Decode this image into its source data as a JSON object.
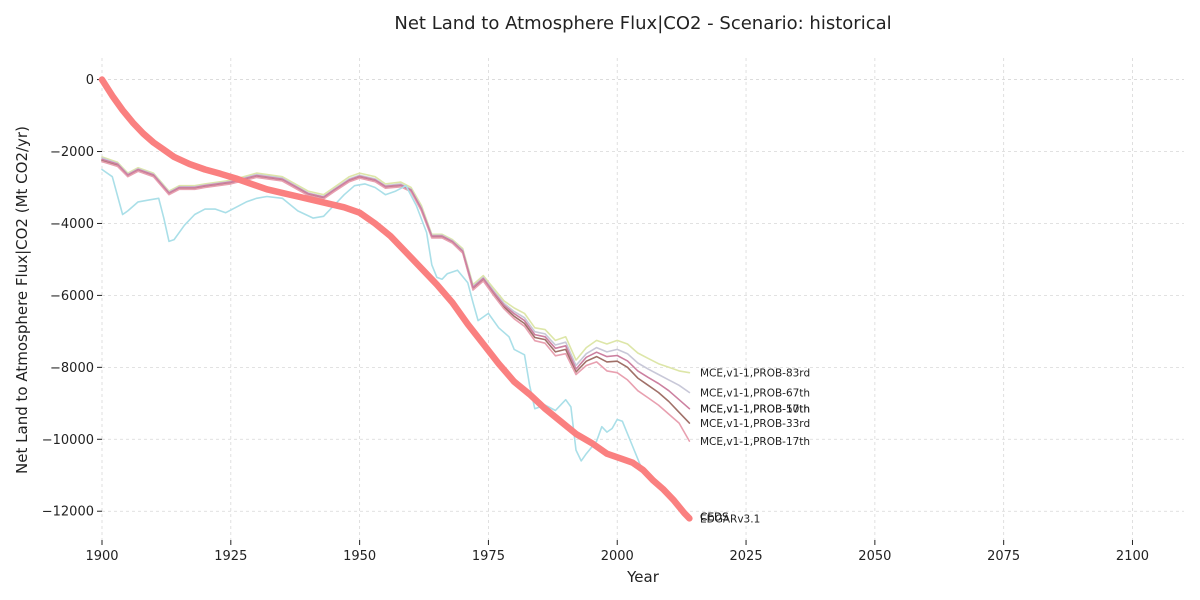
{
  "chart_data": {
    "type": "line",
    "title": "Net Land to Atmosphere Flux|CO2 - Scenario: historical",
    "xlabel": "Year",
    "ylabel": "Net Land to Atmosphere Flux|CO2 (Mt CO2/yr)",
    "xlim": [
      1900,
      2110
    ],
    "ylim": [
      -12800,
      600
    ],
    "xticks": [
      1900,
      1925,
      1950,
      1975,
      2000,
      2025,
      2050,
      2075,
      2100
    ],
    "yticks": [
      0,
      -2000,
      -4000,
      -6000,
      -8000,
      -10000,
      -12000
    ],
    "grid": true,
    "series": [
      {
        "name": "MCE,v1-1,PROB-83rd",
        "color": "#dde6a8",
        "width": 1.6,
        "x": [
          1900,
          1903,
          1905,
          1907,
          1910,
          1913,
          1915,
          1918,
          1920,
          1925,
          1930,
          1935,
          1940,
          1943,
          1945,
          1948,
          1950,
          1953,
          1955,
          1958,
          1960,
          1962,
          1964,
          1966,
          1968,
          1970,
          1972,
          1974,
          1976,
          1978,
          1980,
          1982,
          1984,
          1986,
          1988,
          1990,
          1992,
          1994,
          1996,
          1998,
          2000,
          2002,
          2004,
          2006,
          2008,
          2010,
          2012,
          2014
        ],
        "y": [
          -2150,
          -2300,
          -2600,
          -2450,
          -2600,
          -3100,
          -2950,
          -2950,
          -2900,
          -2800,
          -2600,
          -2700,
          -3100,
          -3200,
          -3000,
          -2700,
          -2600,
          -2700,
          -2900,
          -2850,
          -3000,
          -3500,
          -4300,
          -4300,
          -4450,
          -4700,
          -5700,
          -5450,
          -5800,
          -6150,
          -6350,
          -6500,
          -6900,
          -6950,
          -7250,
          -7150,
          -7800,
          -7450,
          -7250,
          -7350,
          -7250,
          -7350,
          -7600,
          -7750,
          -7900,
          -8000,
          -8100,
          -8150
        ]
      },
      {
        "name": "MCE,v1-1,PROB-67th",
        "color": "#c8c8d8",
        "width": 1.6,
        "x": [
          1900,
          1903,
          1905,
          1907,
          1910,
          1913,
          1915,
          1918,
          1920,
          1925,
          1930,
          1935,
          1940,
          1943,
          1945,
          1948,
          1950,
          1953,
          1955,
          1958,
          1960,
          1962,
          1964,
          1966,
          1968,
          1970,
          1972,
          1974,
          1976,
          1978,
          1980,
          1982,
          1984,
          1986,
          1988,
          1990,
          1992,
          1994,
          1996,
          1998,
          2000,
          2002,
          2004,
          2006,
          2008,
          2010,
          2012,
          2014
        ],
        "y": [
          -2180,
          -2330,
          -2630,
          -2480,
          -2630,
          -3130,
          -2980,
          -2980,
          -2930,
          -2830,
          -2640,
          -2740,
          -3150,
          -3250,
          -3050,
          -2760,
          -2660,
          -2760,
          -2950,
          -2900,
          -3050,
          -3560,
          -4330,
          -4330,
          -4480,
          -4740,
          -5750,
          -5500,
          -5870,
          -6220,
          -6450,
          -6620,
          -7010,
          -7070,
          -7380,
          -7300,
          -7950,
          -7620,
          -7450,
          -7570,
          -7500,
          -7620,
          -7880,
          -8050,
          -8200,
          -8350,
          -8500,
          -8700
        ]
      },
      {
        "name": "MCE,v1-1,PROB-50th",
        "color": "#a07068",
        "width": 1.6,
        "x": [
          1900,
          1903,
          1905,
          1907,
          1910,
          1913,
          1915,
          1918,
          1920,
          1925,
          1930,
          1935,
          1940,
          1943,
          1945,
          1948,
          1950,
          1953,
          1955,
          1958,
          1960,
          1962,
          1964,
          1966,
          1968,
          1970,
          1972,
          1974,
          1976,
          1978,
          1980,
          1982,
          1984,
          1986,
          1988,
          1990,
          1992,
          1994,
          1996,
          1998,
          2000,
          2002,
          2004,
          2006,
          2008,
          2010,
          2012,
          2014
        ],
        "y": [
          -2250,
          -2380,
          -2680,
          -2530,
          -2680,
          -3180,
          -3030,
          -3030,
          -2980,
          -2880,
          -2700,
          -2800,
          -3200,
          -3300,
          -3100,
          -2820,
          -2720,
          -2820,
          -3000,
          -2960,
          -3100,
          -3620,
          -4380,
          -4380,
          -4530,
          -4800,
          -5820,
          -5570,
          -5960,
          -6320,
          -6580,
          -6780,
          -7170,
          -7230,
          -7570,
          -7500,
          -8130,
          -7830,
          -7700,
          -7850,
          -7830,
          -8000,
          -8300,
          -8500,
          -8700,
          -8950,
          -9250,
          -9550
        ]
      },
      {
        "name": "MCE,v1-1,PROB-33rd",
        "color": "#e8a0b0",
        "width": 1.6,
        "x": [
          1900,
          1903,
          1905,
          1907,
          1910,
          1913,
          1915,
          1918,
          1920,
          1925,
          1930,
          1935,
          1940,
          1943,
          1945,
          1948,
          1950,
          1953,
          1955,
          1958,
          1960,
          1962,
          1964,
          1966,
          1968,
          1970,
          1972,
          1974,
          1976,
          1978,
          1980,
          1982,
          1984,
          1986,
          1988,
          1990,
          1992,
          1994,
          1996,
          1998,
          2000,
          2002,
          2004,
          2006,
          2008,
          2010,
          2012,
          2014
        ],
        "y": [
          -2280,
          -2410,
          -2700,
          -2550,
          -2700,
          -3200,
          -3050,
          -3050,
          -3000,
          -2900,
          -2720,
          -2820,
          -3220,
          -3320,
          -3120,
          -2840,
          -2740,
          -2840,
          -3020,
          -2980,
          -3120,
          -3650,
          -4400,
          -4400,
          -4550,
          -4820,
          -5850,
          -5600,
          -6000,
          -6370,
          -6650,
          -6860,
          -7260,
          -7330,
          -7680,
          -7620,
          -8200,
          -7950,
          -7850,
          -8100,
          -8150,
          -8350,
          -8650,
          -8850,
          -9050,
          -9300,
          -9550,
          -10050
        ]
      },
      {
        "name": "MCE,v1-1,PROB-17th",
        "color": "#cc80a0",
        "width": 1.6,
        "x": [
          1900,
          1903,
          1905,
          1907,
          1910,
          1913,
          1915,
          1918,
          1920,
          1925,
          1930,
          1935,
          1940,
          1943,
          1945,
          1948,
          1950,
          1953,
          1955,
          1958,
          1960,
          1962,
          1964,
          1966,
          1968,
          1970,
          1972,
          1974,
          1976,
          1978,
          1980,
          1982,
          1984,
          1986,
          1988,
          1990,
          1992,
          1994,
          1996,
          1998,
          2000,
          2002,
          2004,
          2006,
          2008,
          2010,
          2012,
          2014
        ],
        "y": [
          -2220,
          -2350,
          -2650,
          -2500,
          -2650,
          -3150,
          -3000,
          -3000,
          -2950,
          -2850,
          -2670,
          -2770,
          -3170,
          -3270,
          -3070,
          -2790,
          -2690,
          -2790,
          -2970,
          -2930,
          -3070,
          -3590,
          -4350,
          -4350,
          -4500,
          -4770,
          -5780,
          -5530,
          -5910,
          -6270,
          -6510,
          -6700,
          -7090,
          -7150,
          -7470,
          -7400,
          -8050,
          -7720,
          -7580,
          -7700,
          -7670,
          -7820,
          -8100,
          -8280,
          -8450,
          -8650,
          -8900,
          -9150
        ]
      },
      {
        "name": "CEDS",
        "color": "#aadfe8",
        "width": 1.6,
        "x": [
          1900,
          1902,
          1904,
          1905,
          1907,
          1909,
          1911,
          1912,
          1913,
          1914,
          1916,
          1918,
          1920,
          1922,
          1924,
          1926,
          1928,
          1930,
          1932,
          1935,
          1938,
          1941,
          1943,
          1945,
          1947,
          1949,
          1951,
          1953,
          1955,
          1957,
          1959,
          1961,
          1963,
          1964,
          1965,
          1966,
          1967,
          1969,
          1971,
          1972,
          1973,
          1975,
          1977,
          1979,
          1980,
          1982,
          1983,
          1984,
          1986,
          1988,
          1989,
          1990,
          1991,
          1992,
          1993,
          1994,
          1996,
          1997,
          1998,
          1999,
          2000,
          2001,
          2003,
          2005,
          2007,
          2009,
          2011,
          2013,
          2014
        ],
        "y": [
          -2500,
          -2700,
          -3750,
          -3650,
          -3400,
          -3350,
          -3300,
          -3850,
          -4500,
          -4450,
          -4050,
          -3750,
          -3600,
          -3600,
          -3700,
          -3550,
          -3400,
          -3300,
          -3250,
          -3300,
          -3650,
          -3850,
          -3800,
          -3500,
          -3200,
          -2950,
          -2900,
          -3000,
          -3200,
          -3100,
          -2950,
          -3500,
          -4250,
          -5150,
          -5500,
          -5550,
          -5400,
          -5300,
          -5650,
          -6200,
          -6700,
          -6500,
          -6900,
          -7150,
          -7500,
          -7650,
          -8500,
          -9150,
          -9050,
          -9200,
          -9050,
          -8900,
          -9100,
          -10300,
          -10600,
          -10400,
          -10050,
          -9650,
          -9800,
          -9700,
          -9450,
          -9500,
          -10200,
          -10900,
          -11200,
          -11400,
          -11750,
          -12050,
          -12150
        ]
      },
      {
        "name": "EDGAR",
        "color": "#fa8080",
        "width": 6.5,
        "x": [
          1900,
          1902,
          1904,
          1906,
          1908,
          1910,
          1912,
          1914,
          1917,
          1920,
          1923,
          1926,
          1929,
          1932,
          1935,
          1938,
          1941,
          1944,
          1947,
          1950,
          1953,
          1956,
          1959,
          1962,
          1965,
          1968,
          1971,
          1974,
          1977,
          1980,
          1983,
          1986,
          1989,
          1992,
          1995,
          1998,
          2001,
          2003,
          2005,
          2007,
          2009,
          2011,
          2013,
          2014
        ],
        "y": [
          0,
          -450,
          -850,
          -1200,
          -1500,
          -1750,
          -1950,
          -2150,
          -2350,
          -2500,
          -2620,
          -2750,
          -2900,
          -3050,
          -3150,
          -3250,
          -3350,
          -3450,
          -3550,
          -3700,
          -4000,
          -4350,
          -4800,
          -5250,
          -5700,
          -6200,
          -6800,
          -7350,
          -7900,
          -8400,
          -8750,
          -9150,
          -9500,
          -9850,
          -10100,
          -10400,
          -10550,
          -10650,
          -10850,
          -11150,
          -11400,
          -11700,
          -12050,
          -12200
        ]
      }
    ],
    "labels": [
      {
        "text": "MCE,v1-1,PROB-83rd",
        "y": -8150
      },
      {
        "text": "MCE,v1-1,PROB-67th",
        "y": -8700
      },
      {
        "text": "MCE,v1-1,PROB-50th",
        "y": -9150
      },
      {
        "text": "MCE,v1-1,PROB-17th",
        "y": -9150
      },
      {
        "text": "MCE,v1-1,PROB-33rd",
        "y": -9550
      },
      {
        "text": "MCE,v1-1,PROB-17th",
        "y": -10050
      },
      {
        "text": "EDGARv3.1",
        "y": -12200
      },
      {
        "text": "CEDS",
        "y": -12150
      },
      {
        "text": "CEDS",
        "y": -12150
      }
    ]
  }
}
